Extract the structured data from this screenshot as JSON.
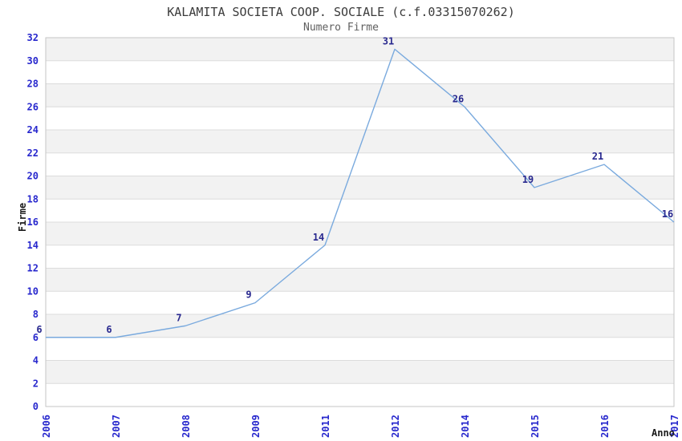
{
  "chart_data": {
    "type": "line",
    "title": "KALAMITA SOCIETA COOP. SOCIALE (c.f.03315070262)",
    "subtitle": "Numero Firme",
    "xlabel": "Anno",
    "ylabel": "Firme",
    "categories": [
      "2006",
      "2007",
      "2008",
      "2009",
      "2011",
      "2012",
      "2014",
      "2015",
      "2016",
      "2017"
    ],
    "values": [
      6,
      6,
      7,
      9,
      14,
      31,
      26,
      19,
      21,
      16
    ],
    "ylim": [
      0,
      32
    ],
    "ytick_step": 2,
    "grid": true,
    "legend_position": "none",
    "point_labels_visible": true,
    "colors": {
      "line": "#7aaade",
      "point_label": "#29298f",
      "tick_label": "#2727cd",
      "grid_line": "#dcdcdc",
      "band_fill": "#f2f2f2",
      "plot_border": "#c6c6c6",
      "title": "#3b3b3b",
      "subtitle": "#5f5f5f",
      "axis_label": "#1a1a1a",
      "background": "#ffffff"
    }
  }
}
